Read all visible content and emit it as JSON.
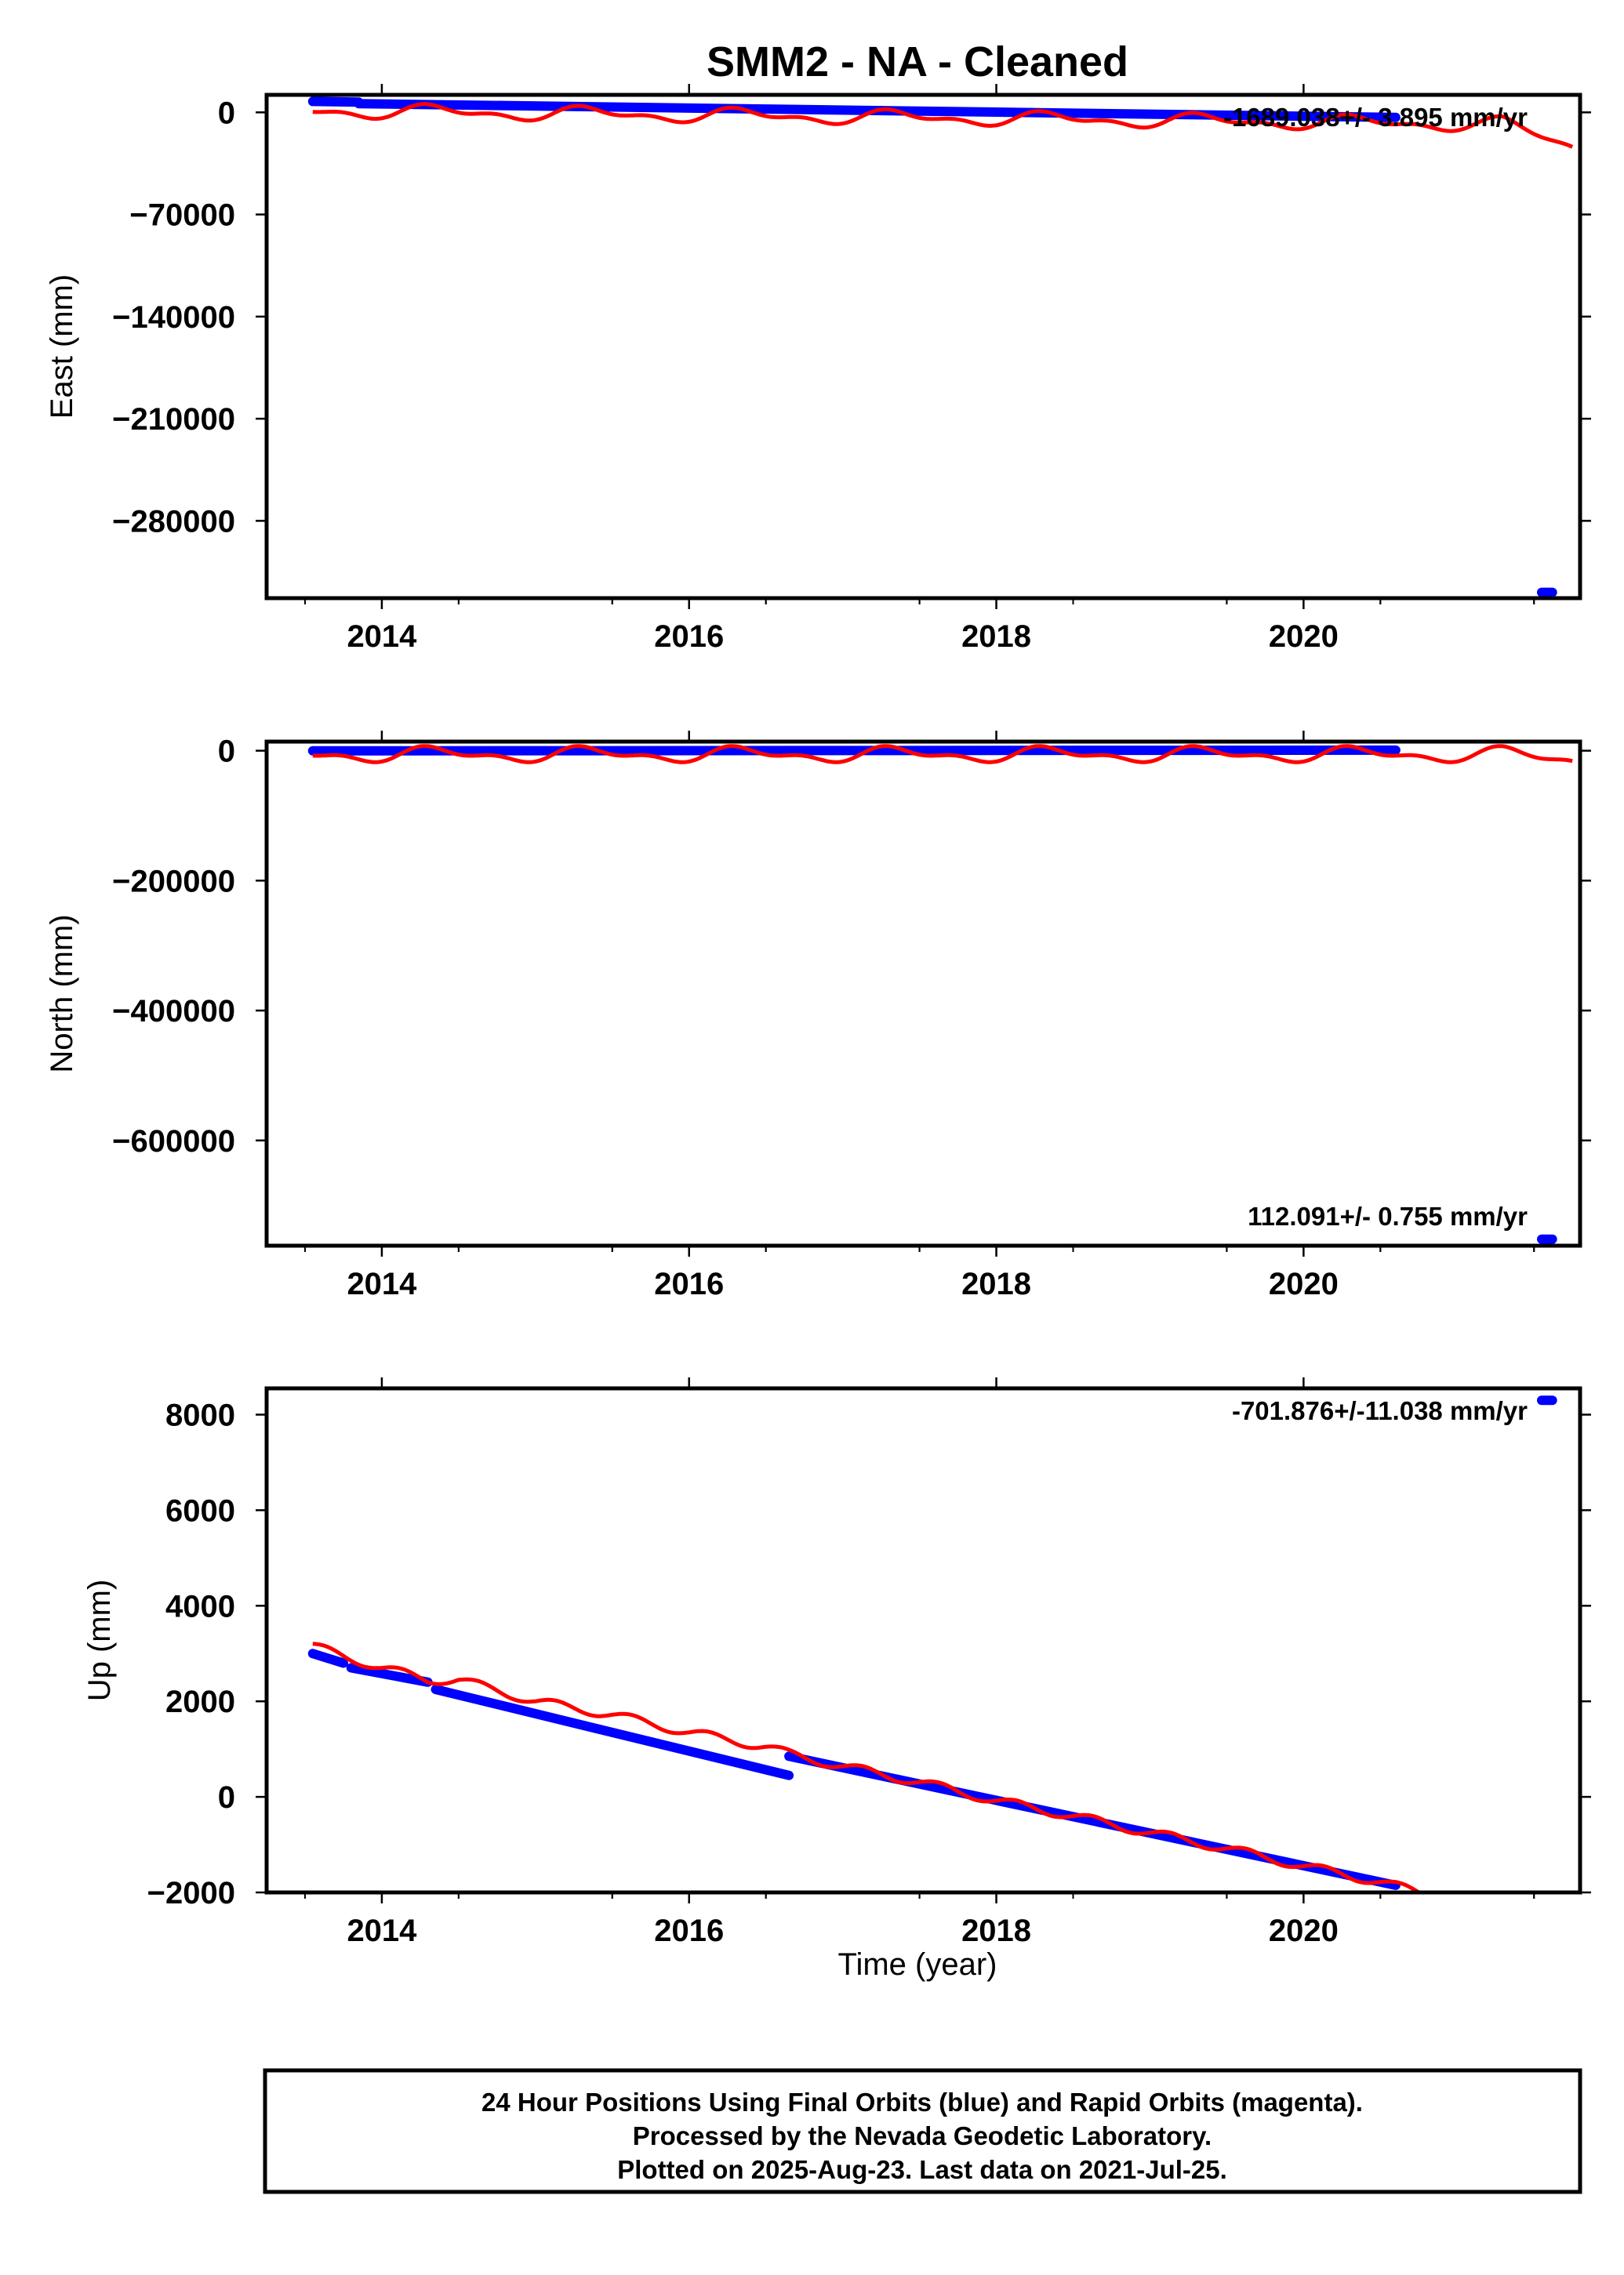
{
  "colors": {
    "final_orbits": "#0000ff",
    "rapid_orbits_curve": "#ff0000",
    "axes": "#000000"
  },
  "chart_data": {
    "type": "scatter",
    "title": "SMM2  - NA - Cleaned",
    "xlabel": "Time (year)",
    "xlim": [
      2013.25,
      2021.8
    ],
    "xticks": [
      2014,
      2016,
      2018,
      2020
    ],
    "xtick_labels": [
      "2014",
      "2016",
      "2018",
      "2020"
    ],
    "legend_note": [
      "24 Hour Positions Using Final Orbits (blue) and Rapid Orbits (magenta).",
      "Processed by the Nevada Geodetic Laboratory.",
      "Plotted on 2025-Aug-23. Last data on 2021-Jul-25."
    ],
    "panels": [
      {
        "name": "east",
        "ylabel": "East (mm)",
        "ylim": [
          -333000,
          12000
        ],
        "yticks": [
          0,
          -70000,
          -140000,
          -210000,
          -280000
        ],
        "ytick_labels": [
          "0",
          "−70000",
          "−140000",
          "−210000",
          "−280000"
        ],
        "rate_label": "-1689.038+/- 3.895 mm/yr",
        "series": [
          {
            "kind": "points",
            "color": "blue",
            "segments": [
              {
                "x": [
                  2013.55,
                  2013.85
                ],
                "y": [
                  7500,
                  7000
                ]
              },
              {
                "x": [
                  2013.85,
                  2020.6
                ],
                "y": [
                  6000,
                  -3500
                ]
              }
            ]
          },
          {
            "kind": "points",
            "color": "blue",
            "segments": [
              {
                "x": [
                  2021.55,
                  2021.62
                ],
                "y": [
                  -329000,
                  -329000
                ]
              }
            ]
          },
          {
            "kind": "curve",
            "color": "red",
            "x0": 2013.55,
            "x1": 2021.75,
            "start": 1000,
            "slope": -1200,
            "amp": 3800,
            "tail": -14000
          }
        ]
      },
      {
        "name": "north",
        "ylabel": "North (mm)",
        "ylim": [
          -762000,
          14000
        ],
        "yticks": [
          0,
          -200000,
          -400000,
          -600000
        ],
        "ytick_labels": [
          "0",
          "−200000",
          "−400000",
          "−600000"
        ],
        "rate_label": "112.091+/- 0.755 mm/yr",
        "series": [
          {
            "kind": "points",
            "color": "blue",
            "segments": [
              {
                "x": [
                  2013.55,
                  2020.6
                ],
                "y": [
                  -200,
                  800
                ]
              }
            ]
          },
          {
            "kind": "points",
            "color": "blue",
            "segments": [
              {
                "x": [
                  2021.55,
                  2021.62
                ],
                "y": [
                  -752000,
                  -752000
                ]
              }
            ]
          },
          {
            "kind": "curve",
            "color": "red",
            "x0": 2013.55,
            "x1": 2021.75,
            "start": -6000,
            "slope": 0,
            "amp": 9000,
            "tail": -8000
          }
        ]
      },
      {
        "name": "up",
        "ylabel": "Up (mm)",
        "ylim": [
          -2000,
          8550
        ],
        "yticks": [
          8000,
          6000,
          4000,
          2000,
          0,
          -2000
        ],
        "ytick_labels": [
          "8000",
          "6000",
          "4000",
          "2000",
          "0",
          "−2000"
        ],
        "rate_label": "-701.876+/-11.038 mm/yr",
        "series": [
          {
            "kind": "points",
            "color": "blue",
            "segments": [
              {
                "x": [
                  2013.55,
                  2013.75
                ],
                "y": [
                  3000,
                  2800
                ]
              },
              {
                "x": [
                  2013.8,
                  2014.3
                ],
                "y": [
                  2700,
                  2400
                ]
              },
              {
                "x": [
                  2014.35,
                  2016.65
                ],
                "y": [
                  2250,
                  450
                ]
              },
              {
                "x": [
                  2016.65,
                  2020.6
                ],
                "y": [
                  850,
                  -1850
                ]
              }
            ]
          },
          {
            "kind": "points",
            "color": "blue",
            "segments": [
              {
                "x": [
                  2021.55,
                  2021.62
                ],
                "y": [
                  8300,
                  8300
                ]
              }
            ]
          },
          {
            "kind": "curve",
            "color": "red",
            "x0": 2013.55,
            "x1": 2020.75,
            "knots": [
              [
                2013.55,
                3150
              ],
              [
                2014.0,
                2700
              ],
              [
                2014.3,
                2450
              ],
              [
                2014.5,
                2450
              ],
              [
                2015.0,
                2000
              ],
              [
                2015.5,
                1720
              ],
              [
                2016.0,
                1350
              ],
              [
                2016.5,
                1050
              ],
              [
                2016.65,
                900
              ],
              [
                2017.0,
                640
              ],
              [
                2017.5,
                310
              ],
              [
                2018.0,
                -80
              ],
              [
                2018.5,
                -400
              ],
              [
                2019.0,
                -750
              ],
              [
                2019.5,
                -1080
              ],
              [
                2020.0,
                -1450
              ],
              [
                2020.5,
                -1780
              ],
              [
                2020.75,
                -2000
              ]
            ],
            "amp": 90
          }
        ]
      }
    ]
  }
}
